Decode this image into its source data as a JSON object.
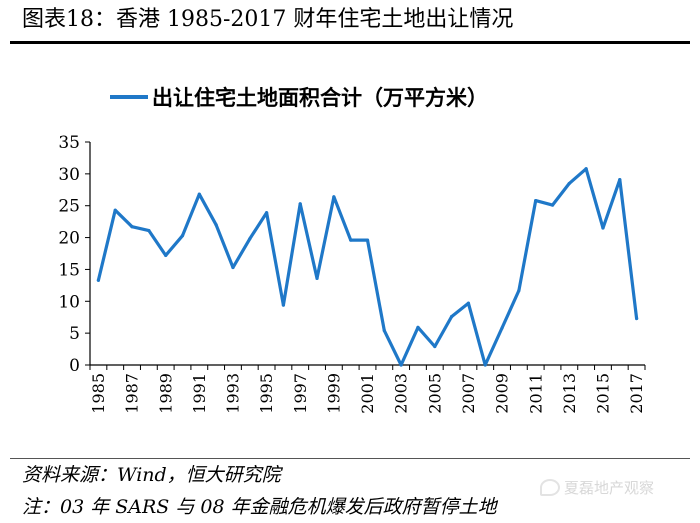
{
  "header": {
    "title": "图表18：香港 1985-2017 财年住宅土地出让情况"
  },
  "footer": {
    "source": "资料来源：Wind，恒大研究院",
    "note": "注：03 年 SARS 与 08 年金融危机爆发后政府暂停土地",
    "watermark": "夏磊地产观察"
  },
  "colors": {
    "series": "#1f78c8",
    "axis": "#000000"
  },
  "chart_data": {
    "type": "line",
    "title": "",
    "xlabel": "",
    "ylabel": "",
    "legend_position": "top",
    "grid": false,
    "ylim": [
      0,
      35
    ],
    "yticks": [
      "0",
      "5",
      "10",
      "15",
      "20",
      "25",
      "30",
      "35"
    ],
    "x": [
      "1985",
      "1986",
      "1987",
      "1988",
      "1989",
      "1990",
      "1991",
      "1992",
      "1993",
      "1994",
      "1995",
      "1996",
      "1997",
      "1998",
      "1999",
      "2000",
      "2001",
      "2002",
      "2003",
      "2004",
      "2005",
      "2006",
      "2007",
      "2008",
      "2009",
      "2010",
      "2011",
      "2012",
      "2013",
      "2014",
      "2015",
      "2016",
      "2017"
    ],
    "xtick_labels": [
      "1985",
      "1987",
      "1989",
      "1991",
      "1993",
      "1995",
      "1997",
      "1999",
      "2001",
      "2003",
      "2005",
      "2007",
      "2009",
      "2011",
      "2013",
      "2015",
      "2017"
    ],
    "series": [
      {
        "name": "出让住宅土地面积合计（万平方米）",
        "values": [
          13.3,
          24.3,
          21.7,
          21.1,
          17.2,
          20.3,
          26.8,
          22.0,
          15.3,
          19.8,
          23.9,
          9.4,
          25.3,
          13.6,
          26.4,
          19.6,
          19.6,
          5.4,
          0,
          5.9,
          2.9,
          7.6,
          9.7,
          0,
          5.8,
          11.7,
          25.8,
          25.1,
          28.5,
          30.8,
          21.5,
          29.1,
          7.3
        ]
      }
    ]
  }
}
